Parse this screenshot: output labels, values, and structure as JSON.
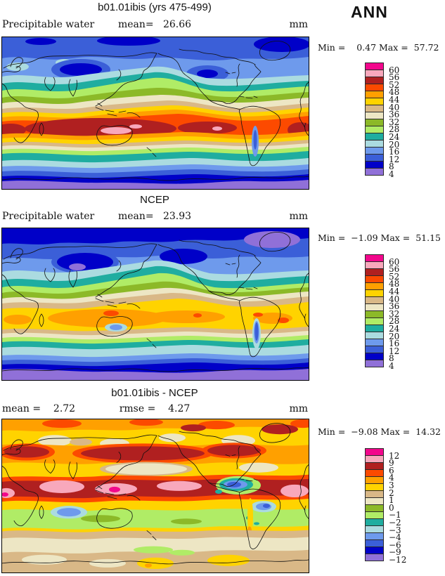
{
  "corner_label": "ANN",
  "palette": [
    "#F2078C",
    "#F8A8BC",
    "#B02020",
    "#FC4A00",
    "#FFA000",
    "#FFD300",
    "#D9B887",
    "#EDE6C4",
    "#8CB928",
    "#B0EC66",
    "#1FADA0",
    "#ABDBE0",
    "#6E9AEC",
    "#3B5FD8",
    "#0000C8",
    "#9070D8"
  ],
  "panels": [
    {
      "title": "b01.01ibis (yrs 475-499)",
      "field_left": "Precipitable water",
      "field_center": "mean=   26.66",
      "field_right": "mm",
      "stats": "Min =    0.47 Max =  57.72",
      "legend_labels": [
        "60",
        "56",
        "52",
        "48",
        "44",
        "40",
        "36",
        "32",
        "28",
        "24",
        "20",
        "16",
        "12",
        "8",
        "4"
      ]
    },
    {
      "title": "NCEP",
      "field_left": "Precipitable water",
      "field_center": "mean=   23.93",
      "field_right": "mm",
      "stats": "Min =  −1.09 Max =  51.15",
      "legend_labels": [
        "60",
        "56",
        "52",
        "48",
        "44",
        "40",
        "36",
        "32",
        "28",
        "24",
        "20",
        "16",
        "12",
        "8",
        "4"
      ]
    },
    {
      "title": "b01.01ibis - NCEP",
      "field_left": "mean =    2.72",
      "field_center": "rmse =    4.27",
      "field_right": "mm",
      "stats": "Min =  −9.08 Max =  14.32",
      "legend_labels": [
        "12",
        "9",
        "6",
        "4",
        "3",
        "2",
        "1",
        "0",
        "−1",
        "−2",
        "−3",
        "−4",
        "−6",
        "−9",
        "−12"
      ]
    }
  ],
  "chart_data": [
    {
      "type": "heatmap",
      "title": "b01.01ibis (yrs 475-499)",
      "variable": "Precipitable water",
      "units": "mm",
      "season": "ANN",
      "mean": 26.66,
      "min": 0.47,
      "max": 57.72,
      "levels": [
        4,
        8,
        12,
        16,
        20,
        24,
        28,
        32,
        36,
        40,
        44,
        48,
        52,
        56,
        60
      ],
      "projection": "global cylindrical lat-lon, Pacific-centered",
      "legend_position": "right"
    },
    {
      "type": "heatmap",
      "title": "NCEP",
      "variable": "Precipitable water",
      "units": "mm",
      "season": "ANN",
      "mean": 23.93,
      "min": -1.09,
      "max": 51.15,
      "levels": [
        4,
        8,
        12,
        16,
        20,
        24,
        28,
        32,
        36,
        40,
        44,
        48,
        52,
        56,
        60
      ],
      "projection": "global cylindrical lat-lon, Pacific-centered",
      "legend_position": "right"
    },
    {
      "type": "heatmap",
      "title": "b01.01ibis - NCEP",
      "variable": "Precipitable water difference",
      "units": "mm",
      "season": "ANN",
      "mean": 2.72,
      "rmse": 4.27,
      "min": -9.08,
      "max": 14.32,
      "levels": [
        -12,
        -9,
        -6,
        -4,
        -3,
        -2,
        -1,
        0,
        1,
        2,
        3,
        4,
        6,
        9,
        12
      ],
      "projection": "global cylindrical lat-lon, Pacific-centered",
      "legend_position": "right"
    }
  ]
}
